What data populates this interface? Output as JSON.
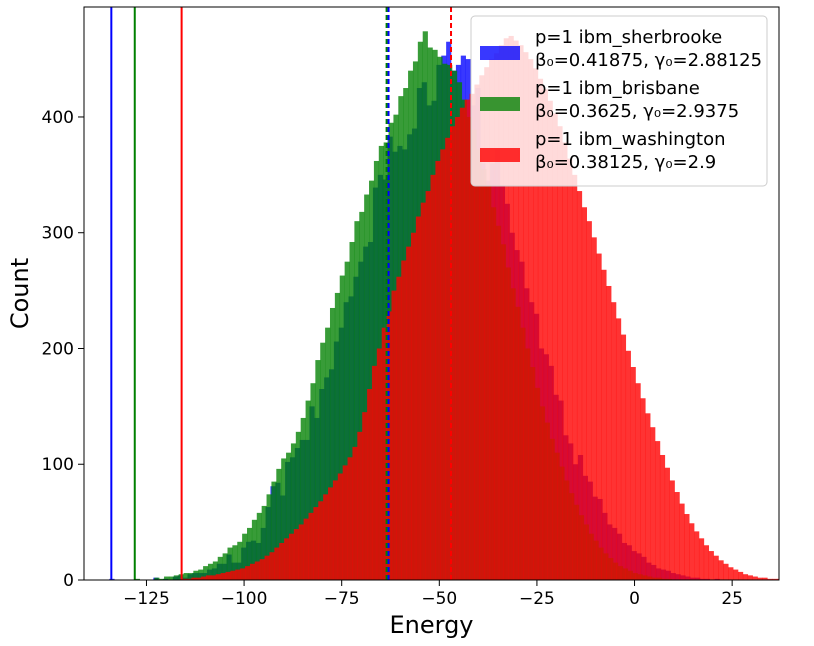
{
  "chart_data": {
    "type": "histogram",
    "xlabel": "Energy",
    "ylabel": "Count",
    "xlim": [
      -141,
      37
    ],
    "ylim": [
      0,
      495
    ],
    "xticks": [
      -125,
      -100,
      -75,
      -50,
      -25,
      0,
      25
    ],
    "xtick_labels": [
      "−125",
      "−100",
      "−75",
      "−50",
      "−25",
      "0",
      "25"
    ],
    "yticks": [
      0,
      100,
      200,
      300,
      400
    ],
    "ytick_labels": [
      "0",
      "100",
      "200",
      "300",
      "400"
    ],
    "grid": false,
    "legend_position": "top-right",
    "series": [
      {
        "name": "p=1 ibm_sherbrooke",
        "params": "β₀=0.41875, γ₀=2.88125",
        "color": "#0000ff",
        "opacity": 0.78,
        "mean": -63,
        "best": -134,
        "bin_start": -134.5,
        "bin_width": 1.25,
        "counts": [
          1,
          0,
          0,
          0,
          0,
          0,
          0,
          0,
          0,
          2,
          0,
          1,
          0,
          3,
          4,
          2,
          5,
          6,
          6,
          6,
          9,
          10,
          14,
          14,
          22,
          15,
          15,
          28,
          33,
          34,
          32,
          45,
          63,
          81,
          84,
          73,
          102,
          106,
          114,
          121,
          121,
          150,
          140,
          165,
          175,
          182,
          206,
          218,
          240,
          245,
          262,
          275,
          288,
          292,
          339,
          350,
          346,
          383,
          370,
          375,
          372,
          385,
          390,
          425,
          430,
          410,
          414,
          445,
          453,
          465,
          440,
          445,
          453,
          450,
          410,
          425,
          360,
          345,
          360,
          372,
          340,
          325,
          300,
          285,
          275,
          252,
          240,
          230,
          200,
          195,
          185,
          160,
          155,
          125,
          118,
          100,
          108,
          90,
          85,
          72,
          70,
          58,
          48,
          45,
          40,
          32,
          30,
          25,
          23,
          20,
          15,
          13,
          10,
          9,
          8,
          6,
          5,
          4,
          3,
          2,
          2,
          1,
          1,
          0,
          1
        ]
      },
      {
        "name": "p=1 ibm_brisbane",
        "params": "β₀=0.3625, γ₀=2.9375",
        "color": "#008000",
        "opacity": 0.78,
        "mean": -63.5,
        "best": -128,
        "bin_start": -128,
        "bin_width": 1.25,
        "counts": [
          1,
          0,
          0,
          0,
          2,
          1,
          3,
          3,
          4,
          5,
          6,
          6,
          8,
          9,
          12,
          14,
          16,
          20,
          23,
          28,
          30,
          33,
          40,
          45,
          52,
          58,
          64,
          74,
          85,
          96,
          105,
          110,
          118,
          128,
          140,
          155,
          170,
          190,
          205,
          218,
          235,
          248,
          263,
          275,
          292,
          310,
          318,
          333,
          345,
          362,
          375,
          378,
          395,
          402,
          418,
          425,
          440,
          448,
          465,
          474,
          460,
          458,
          452,
          446,
          445,
          440,
          430,
          415,
          400,
          389,
          372,
          355,
          340,
          322,
          306,
          290,
          270,
          252,
          236,
          218,
          200,
          184,
          166,
          150,
          136,
          122,
          110,
          98,
          86,
          75,
          65,
          56,
          48,
          40,
          34,
          28,
          23,
          19,
          15,
          12,
          10,
          8,
          6,
          5,
          4,
          3,
          2,
          2,
          1,
          1
        ]
      },
      {
        "name": "p=1 ibm_washington",
        "params": "β₀=0.38125, γ₀=2.9",
        "color": "#ff0000",
        "opacity": 0.8,
        "mean": -47,
        "best": -116,
        "bin_start": -116,
        "bin_width": 1.25,
        "counts": [
          1,
          1,
          2,
          2,
          3,
          4,
          4,
          5,
          6,
          7,
          8,
          9,
          10,
          12,
          14,
          16,
          18,
          21,
          24,
          28,
          32,
          36,
          40,
          44,
          48,
          53,
          58,
          63,
          68,
          74,
          80,
          86,
          92,
          99,
          106,
          115,
          128,
          145,
          165,
          185,
          200,
          218,
          232,
          250,
          262,
          276,
          288,
          300,
          314,
          326,
          336,
          350,
          362,
          372,
          382,
          392,
          400,
          408,
          415,
          420,
          428,
          436,
          443,
          450,
          455,
          462,
          468,
          470,
          466,
          462,
          456,
          450,
          442,
          433,
          424,
          414,
          403,
          392,
          378,
          364,
          350,
          336,
          322,
          310,
          296,
          282,
          268,
          254,
          240,
          226,
          212,
          198,
          184,
          170,
          157,
          144,
          132,
          120,
          108,
          97,
          86,
          76,
          66,
          57,
          49,
          42,
          36,
          30,
          25,
          21,
          17,
          14,
          11,
          9,
          7,
          5,
          4,
          3,
          2,
          2,
          1,
          1,
          1,
          1,
          1,
          0,
          0,
          0,
          0,
          0,
          0,
          0,
          0,
          0,
          0,
          0,
          1
        ]
      }
    ]
  }
}
